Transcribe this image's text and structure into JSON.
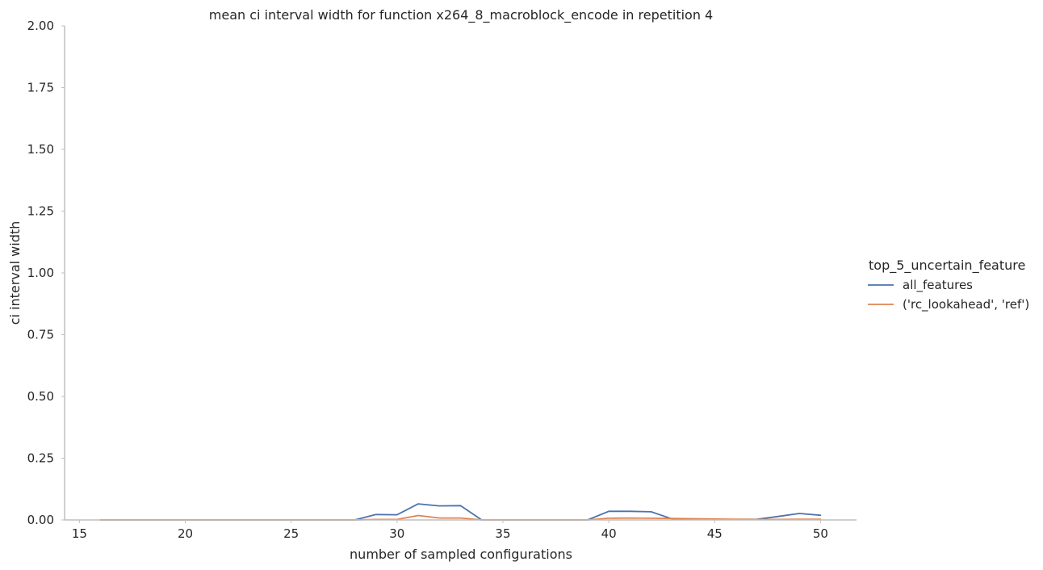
{
  "chart_data": {
    "type": "line",
    "title": "mean ci interval width for function x264_8_macroblock_encode in repetition 4",
    "xlabel": "number of sampled configurations",
    "ylabel": "ci interval width",
    "xlim": [
      14.3,
      51.7
    ],
    "ylim": [
      0,
      2.0
    ],
    "xticks": [
      15,
      20,
      25,
      30,
      35,
      40,
      45,
      50
    ],
    "yticks": [
      0.0,
      0.25,
      0.5,
      0.75,
      1.0,
      1.25,
      1.5,
      1.75,
      2.0
    ],
    "ytick_labels": [
      "0.00",
      "0.25",
      "0.50",
      "0.75",
      "1.00",
      "1.25",
      "1.50",
      "1.75",
      "2.00"
    ],
    "grid": false,
    "legend": {
      "title": "top_5_uncertain_feature",
      "placement": "right"
    },
    "series": [
      {
        "name": "all_features",
        "color": "#4c72b0",
        "x": [
          16,
          17,
          18,
          19,
          20,
          21,
          22,
          23,
          24,
          25,
          26,
          27,
          28,
          29,
          30,
          31,
          32,
          33,
          34,
          35,
          36,
          37,
          38,
          39,
          40,
          41,
          42,
          43,
          44,
          45,
          46,
          47,
          48,
          49,
          50
        ],
        "y": [
          0,
          0,
          0,
          0,
          0,
          0,
          0,
          0,
          0,
          0,
          0,
          0,
          0,
          0.022,
          0.021,
          0.065,
          0.057,
          0.058,
          0,
          0,
          0,
          0,
          0,
          0,
          0.035,
          0.035,
          0.033,
          0.004,
          0.003,
          0.002,
          0.002,
          0.003,
          0.014,
          0.026,
          0.019
        ]
      },
      {
        "name": "('rc_lookahead', 'ref')",
        "color": "#dd8452",
        "x": [
          16,
          17,
          18,
          19,
          20,
          21,
          22,
          23,
          24,
          25,
          26,
          27,
          28,
          29,
          30,
          31,
          32,
          33,
          34,
          35,
          36,
          37,
          38,
          39,
          40,
          41,
          42,
          43,
          44,
          45,
          46,
          47,
          48,
          49,
          50
        ],
        "y": [
          0,
          0,
          0,
          0,
          0,
          0,
          0,
          0,
          0,
          0,
          0,
          0,
          0,
          0.002,
          0.002,
          0.018,
          0.008,
          0.008,
          0,
          0,
          0,
          0,
          0,
          0,
          0.007,
          0.008,
          0.007,
          0.006,
          0.005,
          0.004,
          0.003,
          0.002,
          0.002,
          0.003,
          0.003
        ]
      }
    ]
  }
}
